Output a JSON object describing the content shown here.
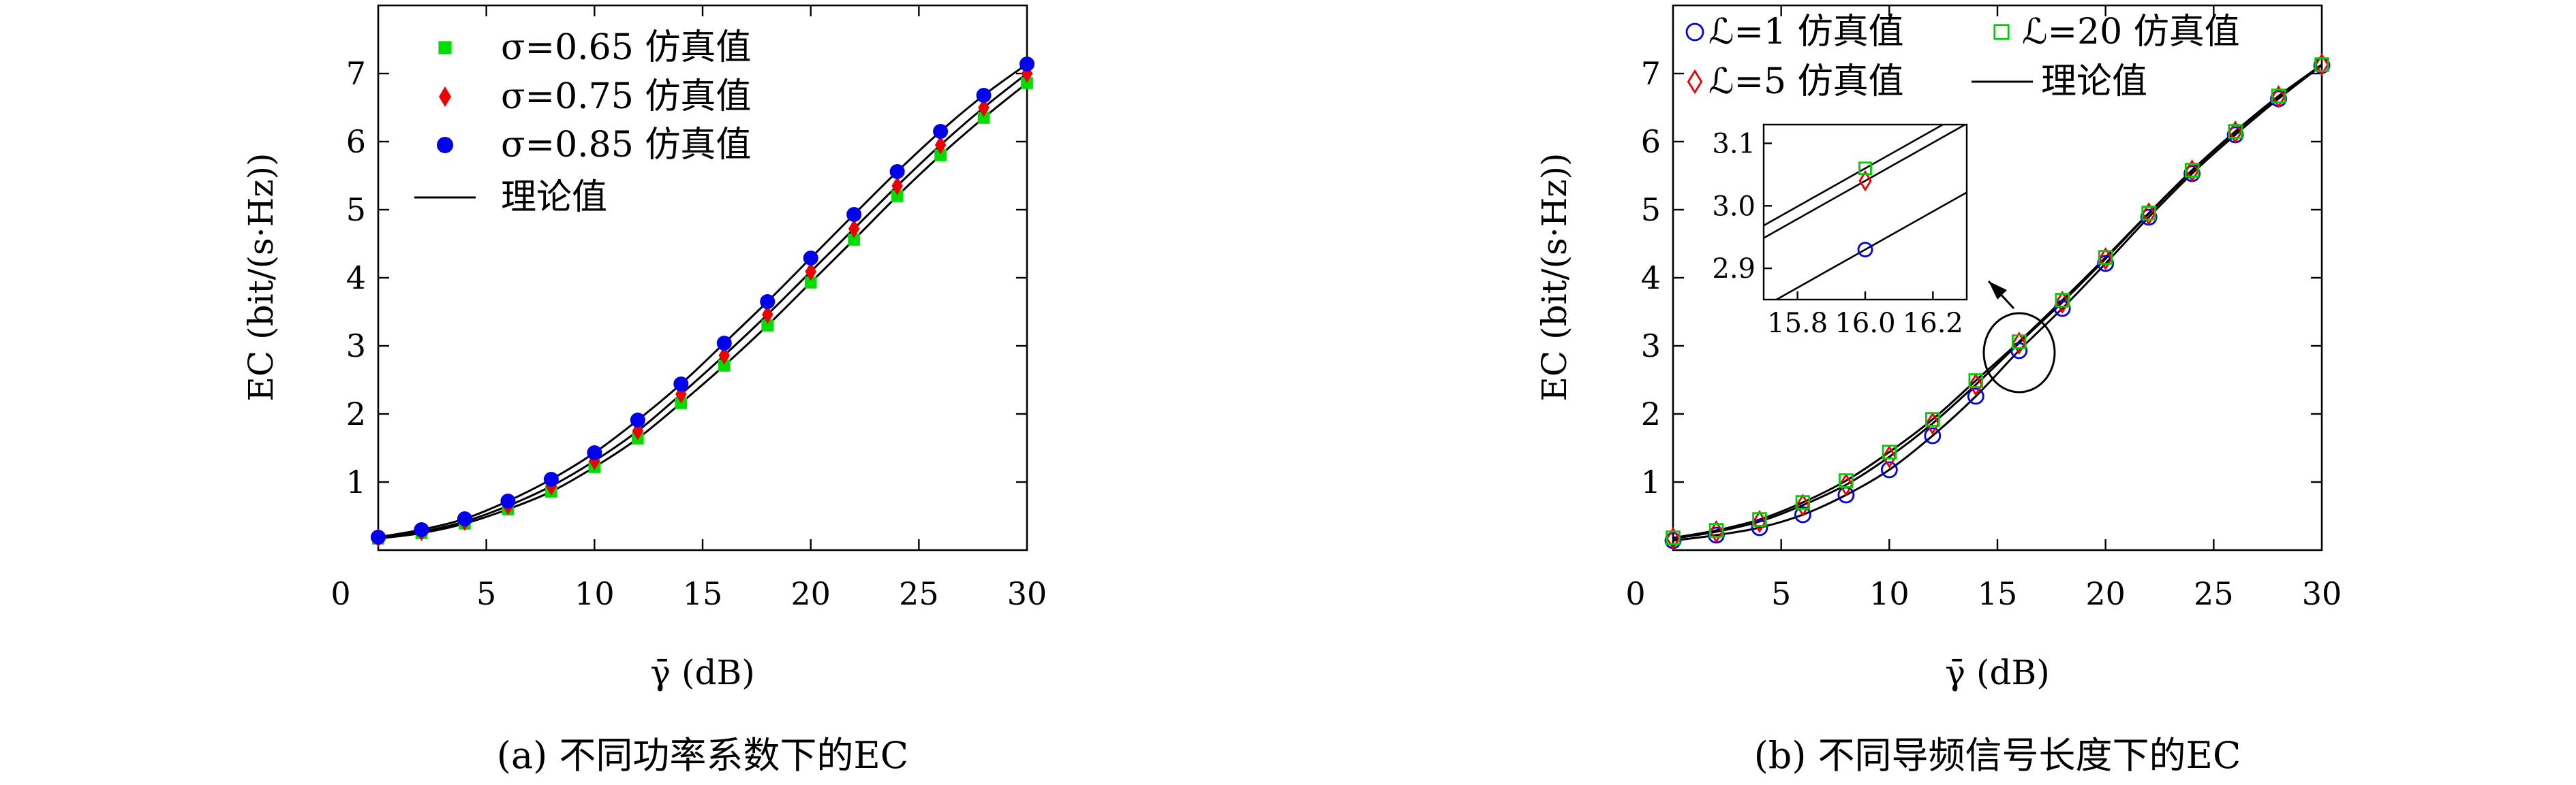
{
  "chart_data": [
    {
      "type": "line",
      "caption": "(a) 不同功率系数下的EC",
      "xlabel": "γ̄ (dB)",
      "ylabel": "EC (bit/(s·Hz))",
      "xlim": [
        0,
        30
      ],
      "ylim": [
        0,
        8
      ],
      "xticks": [
        "0",
        "5",
        "10",
        "15",
        "20",
        "25",
        "30"
      ],
      "yticks": [
        "1",
        "2",
        "3",
        "4",
        "5",
        "6",
        "7"
      ],
      "legend_position": "top-left",
      "x": [
        0,
        2,
        4,
        6,
        8,
        10,
        12,
        14,
        16,
        18,
        20,
        22,
        24,
        26,
        28,
        30
      ],
      "series": [
        {
          "name": "σ=0.65 仿真值",
          "marker": "square",
          "color": "#00dd00",
          "values": [
            0.17,
            0.25,
            0.39,
            0.6,
            0.86,
            1.22,
            1.64,
            2.16,
            2.71,
            3.3,
            3.93,
            4.56,
            5.2,
            5.8,
            6.35,
            6.86
          ]
        },
        {
          "name": "σ=0.75 仿真值",
          "marker": "diamond",
          "color": "#ee0000",
          "values": [
            0.18,
            0.27,
            0.42,
            0.65,
            0.94,
            1.31,
            1.75,
            2.29,
            2.86,
            3.46,
            4.09,
            4.72,
            5.35,
            5.95,
            6.5,
            7.0
          ]
        },
        {
          "name": "σ=0.85 仿真值",
          "marker": "circle",
          "color": "#0000ee",
          "values": [
            0.19,
            0.3,
            0.46,
            0.72,
            1.04,
            1.43,
            1.91,
            2.44,
            3.04,
            3.65,
            4.29,
            4.93,
            5.56,
            6.15,
            6.68,
            7.14
          ]
        },
        {
          "name": "理论值",
          "marker": "line",
          "color": "#000000"
        }
      ]
    },
    {
      "type": "line",
      "caption": "(b) 不同导频信号长度下的EC",
      "xlabel": "γ̄ (dB)",
      "ylabel": "EC (bit/(s·Hz))",
      "xlim": [
        0,
        30
      ],
      "ylim": [
        0,
        8
      ],
      "xticks": [
        "0",
        "5",
        "10",
        "15",
        "20",
        "25",
        "30"
      ],
      "yticks": [
        "1",
        "2",
        "3",
        "4",
        "5",
        "6",
        "7"
      ],
      "legend_position": "top",
      "x": [
        0,
        2,
        4,
        6,
        8,
        10,
        12,
        14,
        16,
        18,
        20,
        22,
        24,
        26,
        28,
        30
      ],
      "series": [
        {
          "name": "ℒ=1 仿真值",
          "marker": "open-circle",
          "color": "#0000ee",
          "values": [
            0.14,
            0.22,
            0.33,
            0.52,
            0.81,
            1.18,
            1.68,
            2.26,
            2.93,
            3.55,
            4.21,
            4.89,
            5.53,
            6.1,
            6.63,
            7.12
          ]
        },
        {
          "name": "ℒ=5 仿真值",
          "marker": "open-diamond",
          "color": "#ee0000",
          "values": [
            0.17,
            0.27,
            0.42,
            0.66,
            0.96,
            1.37,
            1.86,
            2.43,
            3.04,
            3.64,
            4.28,
            4.94,
            5.57,
            6.14,
            6.66,
            7.13
          ]
        },
        {
          "name": "ℒ=20 仿真值",
          "marker": "open-square",
          "color": "#00cc00",
          "values": [
            0.18,
            0.29,
            0.45,
            0.7,
            1.02,
            1.44,
            1.92,
            2.49,
            3.06,
            3.67,
            4.3,
            4.95,
            5.58,
            6.15,
            6.67,
            7.13
          ]
        },
        {
          "name": "理论值",
          "marker": "line",
          "color": "#000000"
        }
      ],
      "inset": {
        "xlim": [
          15.7,
          16.3
        ],
        "ylim": [
          2.85,
          3.13
        ],
        "xticks": [
          "15.8",
          "16.0",
          "16.2"
        ],
        "yticks": [
          "2.9",
          "3.0",
          "3.1"
        ],
        "points": [
          {
            "series": "ℒ=1 仿真值",
            "x": 16.0,
            "y": 2.93
          },
          {
            "series": "ℒ=5 仿真值",
            "x": 16.0,
            "y": 3.04
          },
          {
            "series": "ℒ=20 仿真值",
            "x": 16.0,
            "y": 3.06
          }
        ]
      }
    }
  ]
}
